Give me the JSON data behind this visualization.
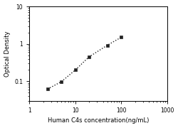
{
  "xlabel": "Human C4s concentration(ng/mL)",
  "ylabel": "Optical Density",
  "x_data": [
    2.5,
    5,
    10,
    20,
    50,
    100
  ],
  "y_data": [
    0.062,
    0.098,
    0.2,
    0.45,
    0.92,
    1.5
  ],
  "xlim": [
    1,
    1000
  ],
  "ylim": [
    0.03,
    10
  ],
  "xticks": [
    1,
    10,
    100,
    1000
  ],
  "yticks": [
    0.1,
    1,
    10
  ],
  "marker": "s",
  "marker_color": "#222222",
  "marker_size": 3.5,
  "line_style": ":",
  "line_color": "#222222",
  "line_width": 1.0,
  "background_color": "#ffffff",
  "xlabel_fontsize": 6.0,
  "ylabel_fontsize": 6.0,
  "tick_fontsize": 5.5,
  "figsize": [
    2.5,
    1.8
  ],
  "dpi": 100
}
